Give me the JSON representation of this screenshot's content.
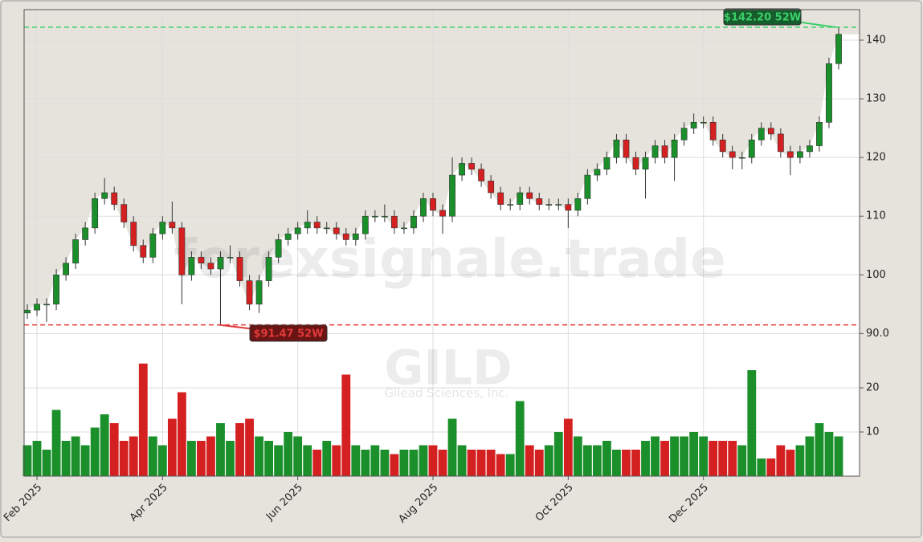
{
  "chart_data": {
    "type": "candlestick",
    "watermark": "forexsignale.trade",
    "symbol": "GILD",
    "company": "Gilead Sciences, Inc.",
    "categories": [
      null,
      "Feb 2025",
      null,
      null,
      null,
      null,
      null,
      null,
      null,
      null,
      null,
      null,
      null,
      null,
      "Apr 2025",
      null,
      null,
      null,
      null,
      null,
      null,
      null,
      null,
      null,
      null,
      null,
      null,
      null,
      "Jun 2025",
      null,
      null,
      null,
      null,
      null,
      null,
      null,
      null,
      null,
      null,
      null,
      null,
      null,
      "Aug 2025",
      null,
      null,
      null,
      null,
      null,
      null,
      null,
      null,
      null,
      null,
      null,
      null,
      null,
      "Oct 2025",
      null,
      null,
      null,
      null,
      null,
      null,
      null,
      null,
      null,
      null,
      null,
      null,
      null,
      "Dec 2025",
      null,
      null,
      null,
      null,
      null,
      null,
      null,
      null,
      null,
      null,
      null,
      null,
      null,
      null
    ],
    "open": [
      93.5,
      94,
      95,
      95,
      100,
      102,
      106,
      108,
      113,
      114,
      112,
      109,
      105,
      103,
      107,
      109,
      108,
      100,
      103,
      102,
      101,
      103,
      103,
      99,
      95,
      99,
      103,
      106,
      107,
      108,
      109,
      108,
      108,
      107,
      106,
      107,
      110,
      110,
      110,
      108,
      108,
      110,
      113,
      111,
      110,
      117,
      119,
      118,
      116,
      114,
      112,
      112,
      114,
      113,
      112,
      112,
      112,
      111,
      113,
      117,
      118,
      120,
      123,
      120,
      118,
      120,
      122,
      120,
      123,
      125,
      126,
      126,
      123,
      121,
      120,
      120,
      123,
      125,
      124,
      121,
      120,
      121,
      122,
      126,
      136
    ],
    "high": [
      95,
      96,
      96,
      101,
      103,
      107,
      109,
      114,
      116.5,
      115,
      113,
      110,
      106,
      108,
      110,
      112.5,
      109,
      104,
      104,
      103,
      104,
      105,
      104,
      100,
      100,
      104,
      107,
      108,
      109,
      111,
      110,
      109,
      109,
      108,
      108,
      111,
      111,
      112,
      111,
      109,
      111,
      114,
      114,
      112,
      120,
      120,
      120,
      119,
      117,
      115,
      113,
      115,
      115,
      114,
      113,
      113,
      113,
      114,
      118,
      119,
      121,
      124,
      124,
      121,
      121,
      123,
      123,
      124,
      126,
      127.5,
      127,
      127,
      124,
      122,
      121,
      124,
      126,
      126,
      125,
      122,
      122,
      123,
      127,
      137,
      142.2
    ],
    "low": [
      92.5,
      93,
      92,
      94,
      99,
      101,
      105,
      107,
      112,
      111,
      108,
      104,
      102,
      102,
      106,
      107,
      95,
      99,
      101,
      100,
      91.47,
      102,
      98,
      94,
      93.5,
      98,
      102,
      105,
      106,
      107,
      107,
      107,
      106,
      105,
      105,
      106,
      109,
      109,
      107,
      107,
      107,
      109,
      110,
      107,
      109,
      116,
      117,
      115,
      113,
      111,
      111,
      111,
      112,
      111,
      111,
      111,
      108,
      110,
      112,
      116,
      117,
      119,
      119,
      117,
      113,
      119,
      119,
      116,
      122,
      124,
      125,
      122,
      120,
      118,
      118,
      119,
      122,
      123,
      120,
      117,
      119,
      120,
      121,
      125,
      135
    ],
    "close": [
      94,
      95,
      95,
      100,
      102,
      106,
      108,
      113,
      114,
      112,
      109,
      105,
      103,
      107,
      109,
      108,
      100,
      103,
      102,
      101,
      103,
      103,
      99,
      95,
      99,
      103,
      106,
      107,
      108,
      109,
      108,
      108,
      107,
      106,
      107,
      110,
      110,
      110,
      108,
      108,
      110,
      113,
      111,
      110,
      117,
      119,
      118,
      116,
      114,
      112,
      112,
      114,
      113,
      112,
      112,
      112,
      111,
      113,
      117,
      118,
      120,
      123,
      120,
      118,
      120,
      122,
      120,
      123,
      125,
      126,
      126,
      123,
      121,
      120,
      120,
      123,
      125,
      124,
      121,
      120,
      121,
      122,
      126,
      136,
      141
    ],
    "volume": [
      7,
      8,
      6,
      15,
      8,
      9,
      7,
      11,
      14,
      12,
      8,
      9,
      25.5,
      9,
      7,
      13,
      19,
      8,
      8,
      9,
      12,
      8,
      12,
      13,
      9,
      8,
      7,
      10,
      9,
      7,
      6,
      8,
      7,
      23,
      7,
      6,
      7,
      6,
      5,
      6,
      6,
      7,
      7,
      6,
      13,
      7,
      6,
      6,
      6,
      5,
      5,
      17,
      7,
      6,
      7,
      10,
      13,
      9,
      7,
      7,
      8,
      6,
      6,
      6,
      8,
      9,
      8,
      9,
      9,
      10,
      9,
      8,
      8,
      8,
      7,
      24,
      4,
      4,
      7,
      6,
      7,
      9,
      12,
      10,
      9
    ],
    "up_color": "#1a8f2a",
    "down_color": "#d42020",
    "ylim": [
      88,
      145.2
    ],
    "yticks": [
      {
        "value": 90,
        "label": "90.0"
      },
      100,
      110,
      120,
      130,
      140
    ],
    "vol_ylim": [
      0,
      30
    ],
    "vol_yticks": [
      10,
      20
    ],
    "high_52w": {
      "value": 142.2,
      "label": "$142.20 52W"
    },
    "low_52w": {
      "value": 91.47,
      "label": "$91.47 52W"
    },
    "grid": true
  }
}
